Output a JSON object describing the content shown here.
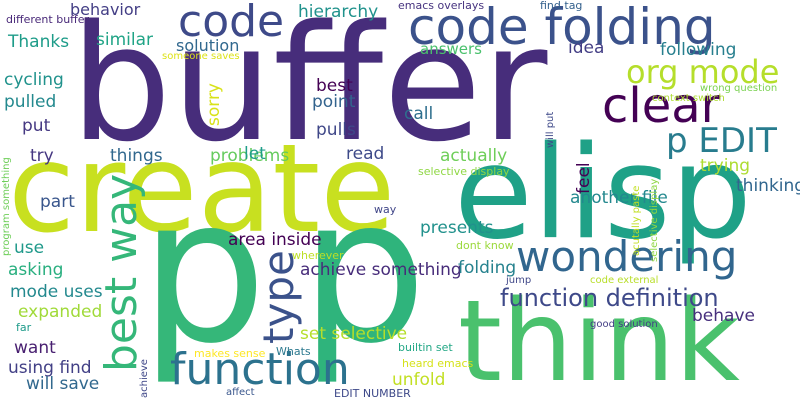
{
  "background_color": "#ffffff",
  "words": [
    {
      "text": "buffer",
      "color": "#472d7b"
    },
    {
      "text": "create",
      "color": "#c8e020"
    },
    {
      "text": "elisp",
      "color": "#1fa187"
    },
    {
      "text": "p",
      "color": "#35b779"
    },
    {
      "text": "p",
      "color": "#2fb47c"
    },
    {
      "text": "think",
      "color": "#4ac16d"
    },
    {
      "text": "code folding",
      "color": "#3b528b"
    },
    {
      "text": "code",
      "color": "#3e4a89"
    },
    {
      "text": "function",
      "color": "#2c728e"
    },
    {
      "text": "wondering",
      "color": "#31668e"
    },
    {
      "text": "clear",
      "color": "#440154"
    },
    {
      "text": "org mode",
      "color": "#b5de2b"
    },
    {
      "text": "p EDIT",
      "color": "#287c8e"
    },
    {
      "text": "best way",
      "color": "#35b779"
    },
    {
      "text": "type",
      "color": "#3b528b"
    },
    {
      "text": "function definition",
      "color": "#3e4989"
    },
    {
      "text": "hierarchy",
      "color": "#20928c"
    },
    {
      "text": "behavior",
      "color": "#433e85"
    },
    {
      "text": "different buffer",
      "color": "#482878"
    },
    {
      "text": "emacs overlays",
      "color": "#46337f"
    },
    {
      "text": "find tag",
      "color": "#34618d"
    },
    {
      "text": "Thanks",
      "color": "#1e9c89"
    },
    {
      "text": "similar",
      "color": "#20a486"
    },
    {
      "text": "solution",
      "color": "#31688e"
    },
    {
      "text": "answers",
      "color": "#4ac16d"
    },
    {
      "text": "idea",
      "color": "#433e85"
    },
    {
      "text": "following",
      "color": "#277f8e"
    },
    {
      "text": "someone saves",
      "color": "#dde318"
    },
    {
      "text": "wrong question",
      "color": "#7ad151"
    },
    {
      "text": "context switch",
      "color": "#addc30"
    },
    {
      "text": "cycling",
      "color": "#20928c"
    },
    {
      "text": "pulled",
      "color": "#23898e"
    },
    {
      "text": "sorry",
      "color": "#d8e219"
    },
    {
      "text": "best",
      "color": "#440154"
    },
    {
      "text": "point",
      "color": "#33638d"
    },
    {
      "text": "call",
      "color": "#2e6f8e"
    },
    {
      "text": "pulls",
      "color": "#3f4788"
    },
    {
      "text": "will put",
      "color": "#3e4989"
    },
    {
      "text": "put",
      "color": "#453882"
    },
    {
      "text": "try",
      "color": "#453781"
    },
    {
      "text": "things",
      "color": "#31688e"
    },
    {
      "text": "problems",
      "color": "#65cb5e"
    },
    {
      "text": "let",
      "color": "#1f9e89"
    },
    {
      "text": "read",
      "color": "#3e4a89"
    },
    {
      "text": "actually",
      "color": "#6ece58"
    },
    {
      "text": "thinking",
      "color": "#31668e"
    },
    {
      "text": "trying",
      "color": "#addc30"
    },
    {
      "text": "feel",
      "color": "#440154"
    },
    {
      "text": "program something",
      "color": "#6ece58"
    },
    {
      "text": "acutally paste",
      "color": "#c2df23"
    },
    {
      "text": "selective display",
      "color": "#8fd744"
    },
    {
      "text": "another file",
      "color": "#23888e"
    },
    {
      "text": "part",
      "color": "#39568c"
    },
    {
      "text": "way",
      "color": "#404688"
    },
    {
      "text": "area inside",
      "color": "#440154"
    },
    {
      "text": "presents",
      "color": "#21918c"
    },
    {
      "text": "use",
      "color": "#1f998a"
    },
    {
      "text": "wherever",
      "color": "#bddf26"
    },
    {
      "text": "dont know",
      "color": "#9bd93c"
    },
    {
      "text": "achieve something",
      "color": "#472c7a"
    },
    {
      "text": "asking",
      "color": "#29af7f"
    },
    {
      "text": "folding",
      "color": "#26828e"
    },
    {
      "text": "jump",
      "color": "#3f4788"
    },
    {
      "text": "code external",
      "color": "#b8de29"
    },
    {
      "text": "mode uses",
      "color": "#23898e"
    },
    {
      "text": "expanded",
      "color": "#a0da39"
    },
    {
      "text": "behave",
      "color": "#472f7d"
    },
    {
      "text": "far",
      "color": "#1e9b8a"
    },
    {
      "text": "good solution",
      "color": "#433e85"
    },
    {
      "text": "set selective",
      "color": "#b5de2b"
    },
    {
      "text": "want",
      "color": "#481f70"
    },
    {
      "text": "Whats",
      "color": "#2a788e"
    },
    {
      "text": "makes sense",
      "color": "#fde725"
    },
    {
      "text": "builtin set",
      "color": "#22a785"
    },
    {
      "text": "using find",
      "color": "#424086"
    },
    {
      "text": "achieve",
      "color": "#3f4788"
    },
    {
      "text": "heard emacs",
      "color": "#d5e21a"
    },
    {
      "text": "will save",
      "color": "#31688e"
    },
    {
      "text": "unfold",
      "color": "#c2df23"
    },
    {
      "text": "affect",
      "color": "#39568c"
    },
    {
      "text": "EDIT NUMBER",
      "color": "#3e4989"
    },
    {
      "text": "current buffer",
      "color": "#1f9a8a"
    }
  ]
}
